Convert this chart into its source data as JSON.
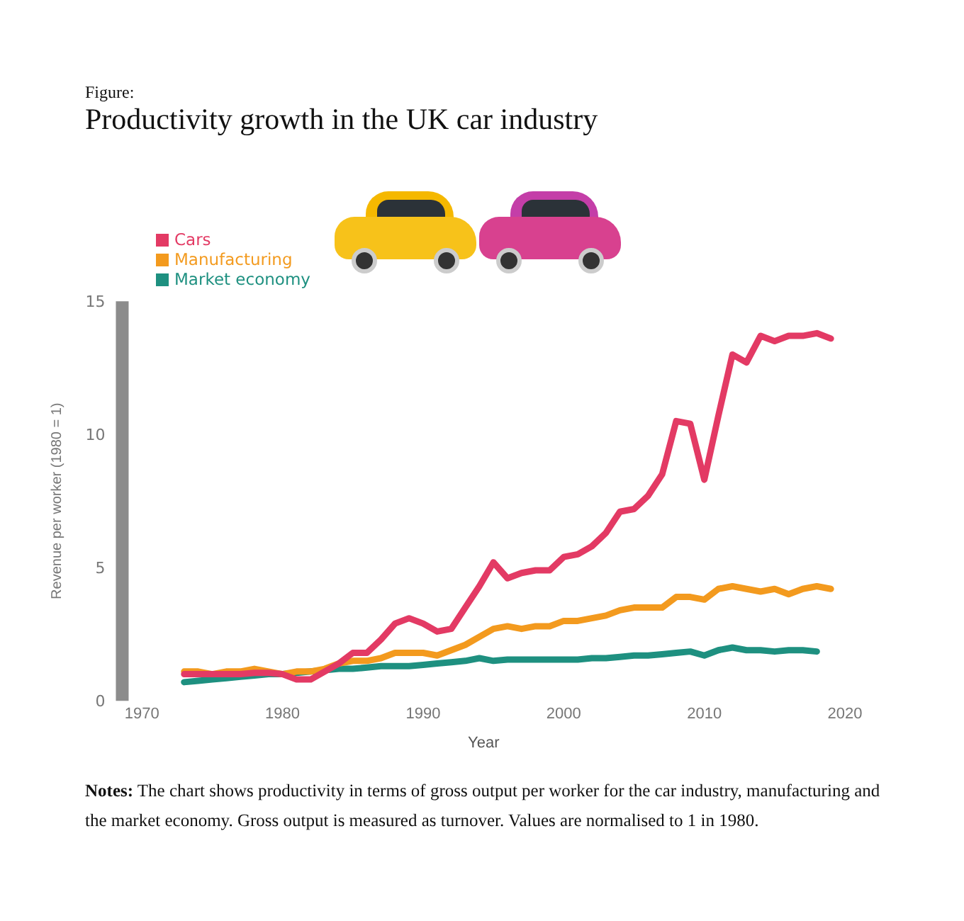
{
  "chart_data": {
    "type": "line",
    "title": "Productivity growth in the UK car industry",
    "subtitle": "Figure:",
    "xlabel": "Year",
    "ylabel": "Revenue per worker (1980 = 1)",
    "xlim": [
      1968.6,
      2020
    ],
    "xticks": [
      1970,
      1980,
      1990,
      2000,
      2010,
      2020
    ],
    "ylim": [
      0,
      15
    ],
    "yticks": [
      0,
      5,
      10,
      15
    ],
    "grid": false,
    "legend": "top left",
    "marker": "none",
    "line_style": "solid",
    "annotations": [
      "Notes: The chart shows productivity in terms of gross output per worker for the car industry, manufacturing and the market economy. Gross output is measured as turnover. Values are normalised to 1 in 1980."
    ],
    "x": [
      1973,
      1974,
      1975,
      1976,
      1977,
      1978,
      1979,
      1980,
      1981,
      1982,
      1983,
      1984,
      1985,
      1986,
      1987,
      1988,
      1989,
      1990,
      1991,
      1992,
      1993,
      1994,
      1995,
      1996,
      1997,
      1998,
      1999,
      2000,
      2001,
      2002,
      2003,
      2004,
      2005,
      2006,
      2007,
      2008,
      2009,
      2010,
      2011,
      2012,
      2013,
      2014,
      2015,
      2016,
      2017,
      2018,
      2019
    ],
    "series": [
      {
        "name": "Cars",
        "color": "#e33a64",
        "values": [
          1.0,
          1.0,
          1.0,
          1.0,
          1.0,
          1.05,
          1.05,
          1.0,
          0.8,
          0.8,
          1.1,
          1.4,
          1.8,
          1.8,
          2.3,
          2.9,
          3.1,
          2.9,
          2.6,
          2.7,
          3.5,
          4.3,
          5.2,
          4.6,
          4.8,
          4.9,
          4.9,
          5.4,
          5.5,
          5.8,
          6.3,
          7.1,
          7.2,
          7.7,
          8.5,
          10.5,
          10.4,
          8.3,
          10.7,
          13.0,
          12.7,
          13.7,
          13.5,
          13.7,
          13.7,
          13.8,
          13.6
        ]
      },
      {
        "name": "Manufacturing",
        "color": "#f39a1e",
        "values": [
          1.1,
          1.1,
          1.0,
          1.1,
          1.1,
          1.2,
          1.1,
          1.0,
          1.1,
          1.1,
          1.2,
          1.4,
          1.5,
          1.5,
          1.6,
          1.8,
          1.8,
          1.8,
          1.7,
          1.9,
          2.1,
          2.4,
          2.7,
          2.8,
          2.7,
          2.8,
          2.8,
          3.0,
          3.0,
          3.1,
          3.2,
          3.4,
          3.5,
          3.5,
          3.5,
          3.9,
          3.9,
          3.8,
          4.2,
          4.3,
          4.2,
          4.1,
          4.2,
          4.0,
          4.2,
          4.3,
          4.2
        ]
      },
      {
        "name": "Market economy",
        "color": "#1e9080",
        "values": [
          0.7,
          0.75,
          0.8,
          0.85,
          0.9,
          0.95,
          1.0,
          1.0,
          1.05,
          1.1,
          1.15,
          1.2,
          1.2,
          1.25,
          1.3,
          1.3,
          1.3,
          1.35,
          1.4,
          1.45,
          1.5,
          1.6,
          1.5,
          1.55,
          1.55,
          1.55,
          1.55,
          1.55,
          1.55,
          1.6,
          1.6,
          1.65,
          1.7,
          1.7,
          1.75,
          1.8,
          1.85,
          1.7,
          1.9,
          2.0,
          1.9,
          1.9,
          1.85,
          1.9,
          1.9,
          1.85,
          null
        ]
      }
    ]
  }
}
